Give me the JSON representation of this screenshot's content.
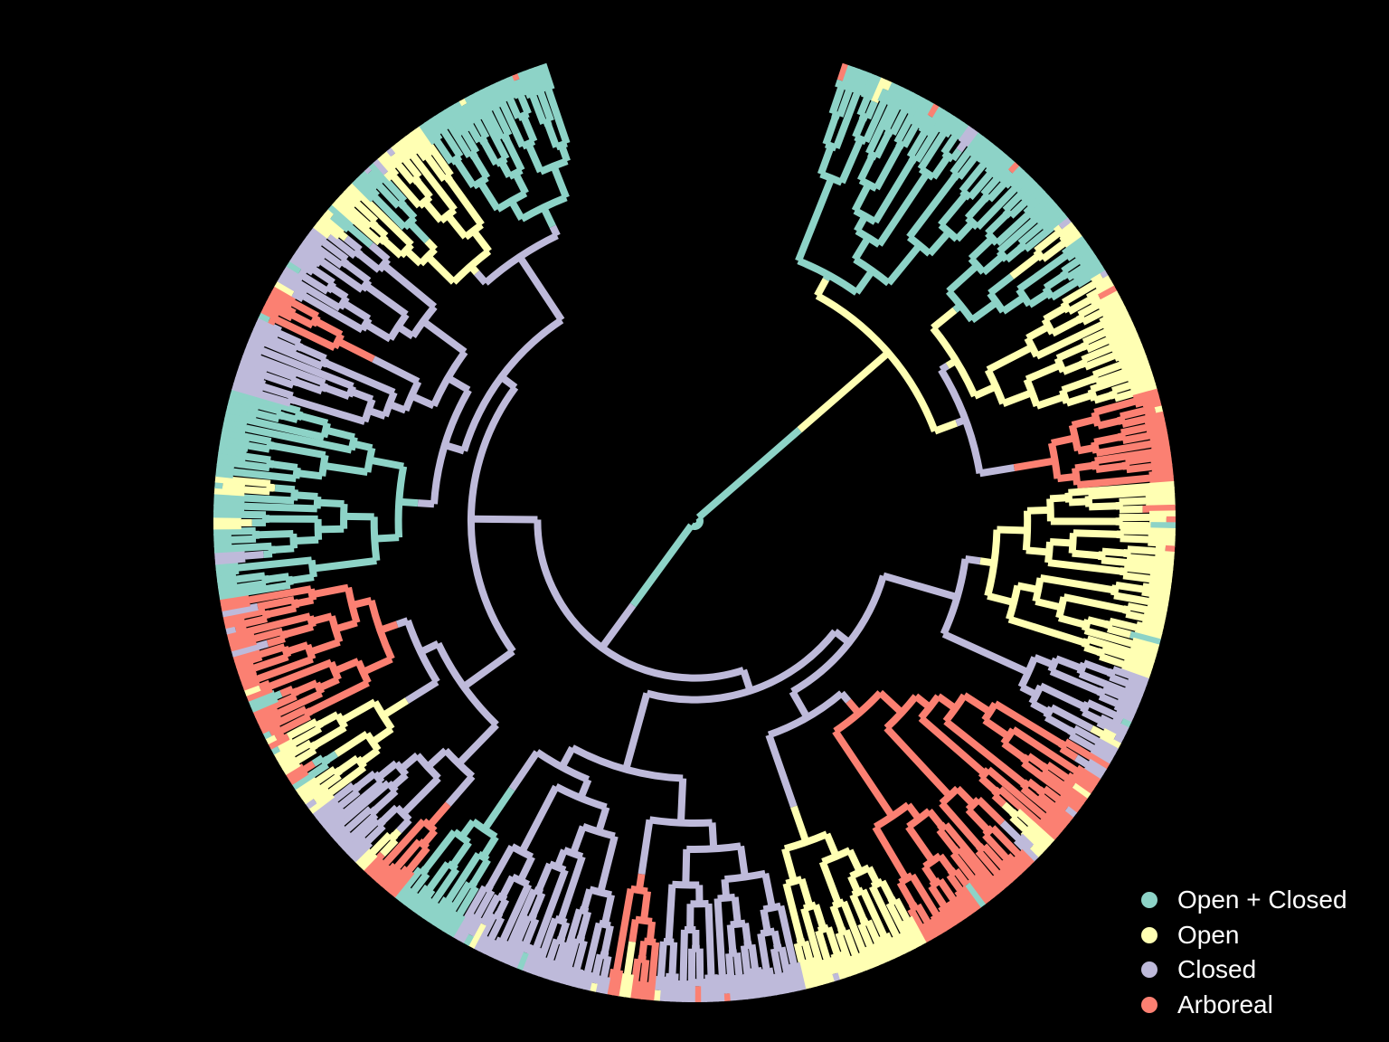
{
  "legend": [
    {
      "label": "Open + Closed",
      "color": "#8dd3c7"
    },
    {
      "label": "Open",
      "color": "#ffffb3"
    },
    {
      "label": "Closed",
      "color": "#bebada"
    },
    {
      "label": "Arboreal",
      "color": "#fb8072"
    }
  ],
  "tree": {
    "type": "circular-phylogeny-fan",
    "root_state": "Open + Closed",
    "open_angle_deg": 36,
    "clades": [
      {
        "state": "Open + Closed",
        "tips": 38
      },
      {
        "state": "Open",
        "tips": 42
      },
      {
        "state": "Arboreal",
        "tips": 16
      },
      {
        "state": "Open",
        "tips": 34
      },
      {
        "state": "Closed",
        "tips": 16
      },
      {
        "state": "Arboreal",
        "tips": 44
      },
      {
        "state": "Open",
        "tips": 22
      },
      {
        "state": "Closed",
        "tips": 26
      },
      {
        "state": "Arboreal",
        "tips": 8
      },
      {
        "state": "Closed",
        "tips": 28
      },
      {
        "state": "Open + Closed",
        "tips": 12
      },
      {
        "state": "Arboreal",
        "tips": 6
      },
      {
        "state": "Closed",
        "tips": 14
      },
      {
        "state": "Open",
        "tips": 14
      },
      {
        "state": "Arboreal",
        "tips": 26
      },
      {
        "state": "Open + Closed",
        "tips": 36
      },
      {
        "state": "Closed",
        "tips": 36
      },
      {
        "state": "Open",
        "tips": 20
      },
      {
        "state": "Open + Closed",
        "tips": 24
      }
    ]
  }
}
